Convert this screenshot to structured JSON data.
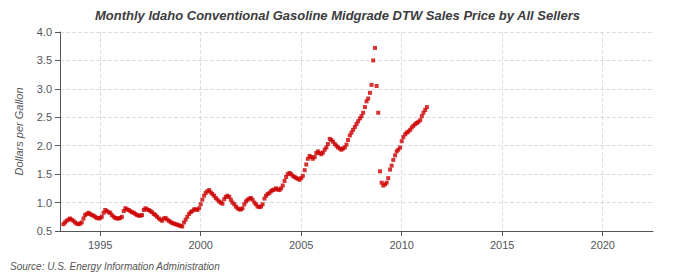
{
  "chart_data": {
    "type": "scatter",
    "title": "Monthly Idaho Conventional Gasoline Midgrade DTW Sales Price by All Sellers",
    "ylabel": "Dollars per Gallon",
    "annotations": [
      "Source: U.S. Energy Information Administration"
    ],
    "color": "#cc0000",
    "marker": "square",
    "grid": true,
    "xlim": [
      1993.0,
      2022.5
    ],
    "ylim": [
      0.5,
      4.0
    ],
    "xticks": [
      1995,
      2000,
      2005,
      2010,
      2015,
      2020
    ],
    "yticks": [
      0.5,
      {
        "value": 1.0,
        "label": "1.0"
      },
      1.5,
      {
        "value": 2.0,
        "label": "2.0"
      },
      2.5,
      {
        "value": 3.0,
        "label": "3.0"
      },
      3.5,
      {
        "value": 4.0,
        "label": "4.0"
      }
    ],
    "x": [
      1993.17,
      1993.25,
      1993.33,
      1993.42,
      1993.5,
      1993.58,
      1993.67,
      1993.75,
      1993.83,
      1993.92,
      1994.0,
      1994.08,
      1994.17,
      1994.25,
      1994.33,
      1994.42,
      1994.5,
      1994.58,
      1994.67,
      1994.75,
      1994.83,
      1994.92,
      1995.0,
      1995.08,
      1995.17,
      1995.25,
      1995.33,
      1995.42,
      1995.5,
      1995.58,
      1995.67,
      1995.75,
      1995.83,
      1995.92,
      1996.0,
      1996.08,
      1996.17,
      1996.25,
      1996.33,
      1996.42,
      1996.5,
      1996.58,
      1996.67,
      1996.75,
      1996.83,
      1996.92,
      1997.0,
      1997.08,
      1997.17,
      1997.25,
      1997.33,
      1997.42,
      1997.5,
      1997.58,
      1997.67,
      1997.75,
      1997.83,
      1997.92,
      1998.0,
      1998.08,
      1998.17,
      1998.25,
      1998.33,
      1998.42,
      1998.5,
      1998.58,
      1998.67,
      1998.75,
      1998.83,
      1998.92,
      1999.0,
      1999.08,
      1999.17,
      1999.25,
      1999.33,
      1999.42,
      1999.5,
      1999.58,
      1999.67,
      1999.75,
      1999.83,
      1999.92,
      2000.0,
      2000.08,
      2000.17,
      2000.25,
      2000.33,
      2000.42,
      2000.5,
      2000.58,
      2000.67,
      2000.75,
      2000.83,
      2000.92,
      2001.0,
      2001.08,
      2001.17,
      2001.25,
      2001.33,
      2001.42,
      2001.5,
      2001.58,
      2001.67,
      2001.75,
      2001.83,
      2001.92,
      2002.0,
      2002.08,
      2002.17,
      2002.25,
      2002.33,
      2002.42,
      2002.5,
      2002.58,
      2002.67,
      2002.75,
      2002.83,
      2002.92,
      2003.0,
      2003.08,
      2003.17,
      2003.25,
      2003.33,
      2003.42,
      2003.5,
      2003.58,
      2003.67,
      2003.75,
      2003.83,
      2003.92,
      2004.0,
      2004.08,
      2004.17,
      2004.25,
      2004.33,
      2004.42,
      2004.5,
      2004.58,
      2004.67,
      2004.75,
      2004.83,
      2004.92,
      2005.0,
      2005.08,
      2005.17,
      2005.25,
      2005.33,
      2005.42,
      2005.5,
      2005.58,
      2005.67,
      2005.75,
      2005.83,
      2005.92,
      2006.0,
      2006.08,
      2006.17,
      2006.25,
      2006.33,
      2006.42,
      2006.5,
      2006.58,
      2006.67,
      2006.75,
      2006.83,
      2006.92,
      2007.0,
      2007.08,
      2007.17,
      2007.25,
      2007.33,
      2007.42,
      2007.5,
      2007.58,
      2007.67,
      2007.75,
      2007.83,
      2007.92,
      2008.0,
      2008.08,
      2008.17,
      2008.25,
      2008.33,
      2008.42,
      2008.5,
      2008.58,
      2008.67,
      2008.75,
      2008.83,
      2008.92,
      2009.0,
      2009.08,
      2009.17,
      2009.25,
      2009.33,
      2009.42,
      2009.5,
      2009.58,
      2009.67,
      2009.75,
      2009.83,
      2009.92,
      2010.0,
      2010.08,
      2010.17,
      2010.25,
      2010.33,
      2010.42,
      2010.5,
      2010.58,
      2010.67,
      2010.75,
      2010.83,
      2010.92,
      2011.0,
      2011.08,
      2011.17,
      2011.25
    ],
    "values": [
      0.62,
      0.65,
      0.68,
      0.7,
      0.72,
      0.7,
      0.68,
      0.65,
      0.63,
      0.62,
      0.63,
      0.65,
      0.72,
      0.78,
      0.8,
      0.82,
      0.8,
      0.78,
      0.77,
      0.75,
      0.73,
      0.72,
      0.73,
      0.75,
      0.82,
      0.87,
      0.85,
      0.83,
      0.82,
      0.78,
      0.75,
      0.73,
      0.72,
      0.72,
      0.73,
      0.75,
      0.85,
      0.9,
      0.88,
      0.87,
      0.85,
      0.83,
      0.82,
      0.8,
      0.78,
      0.77,
      0.77,
      0.78,
      0.87,
      0.9,
      0.88,
      0.87,
      0.85,
      0.83,
      0.8,
      0.78,
      0.75,
      0.72,
      0.7,
      0.68,
      0.72,
      0.73,
      0.7,
      0.68,
      0.66,
      0.64,
      0.63,
      0.62,
      0.61,
      0.6,
      0.59,
      0.58,
      0.65,
      0.7,
      0.75,
      0.8,
      0.83,
      0.85,
      0.88,
      0.88,
      0.87,
      0.9,
      0.97,
      1.05,
      1.12,
      1.17,
      1.2,
      1.22,
      1.18,
      1.15,
      1.12,
      1.08,
      1.05,
      1.02,
      1.0,
      0.98,
      1.06,
      1.1,
      1.12,
      1.1,
      1.05,
      1.0,
      0.97,
      0.93,
      0.9,
      0.88,
      0.88,
      0.9,
      0.97,
      1.02,
      1.05,
      1.07,
      1.08,
      1.05,
      1.0,
      0.97,
      0.93,
      0.92,
      0.93,
      0.97,
      1.07,
      1.12,
      1.15,
      1.17,
      1.2,
      1.22,
      1.23,
      1.25,
      1.23,
      1.22,
      1.25,
      1.3,
      1.38,
      1.45,
      1.5,
      1.52,
      1.5,
      1.47,
      1.45,
      1.43,
      1.42,
      1.4,
      1.43,
      1.47,
      1.57,
      1.67,
      1.77,
      1.82,
      1.8,
      1.77,
      1.8,
      1.87,
      1.9,
      1.87,
      1.85,
      1.88,
      1.93,
      1.97,
      2.03,
      2.12,
      2.1,
      2.07,
      2.03,
      2.0,
      1.97,
      1.95,
      1.93,
      1.95,
      1.97,
      2.02,
      2.1,
      2.18,
      2.23,
      2.28,
      2.33,
      2.38,
      2.43,
      2.48,
      2.52,
      2.58,
      2.68,
      2.78,
      2.83,
      2.93,
      3.07,
      3.5,
      3.72,
      3.05,
      2.58,
      1.55,
      1.35,
      1.3,
      1.32,
      1.35,
      1.43,
      1.58,
      1.65,
      1.75,
      1.83,
      1.9,
      1.93,
      1.97,
      2.08,
      2.15,
      2.2,
      2.23,
      2.25,
      2.28,
      2.32,
      2.35,
      2.38,
      2.4,
      2.42,
      2.45,
      2.52,
      2.58,
      2.63,
      2.68
    ]
  }
}
